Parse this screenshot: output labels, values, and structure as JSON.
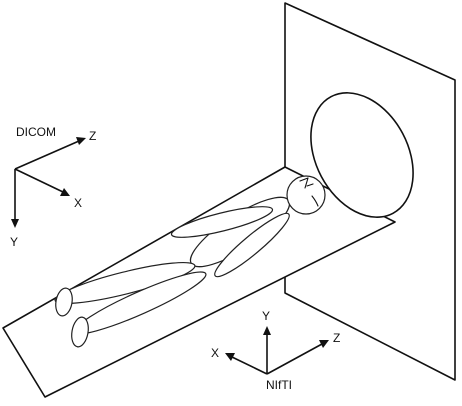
{
  "frames": {
    "dicom": {
      "title": "DICOM",
      "axis_x": "X",
      "axis_y": "Y",
      "axis_z": "Z"
    },
    "nifti": {
      "title": "NIfTI",
      "axis_x": "X",
      "axis_y": "Y",
      "axis_z": "Z"
    }
  }
}
